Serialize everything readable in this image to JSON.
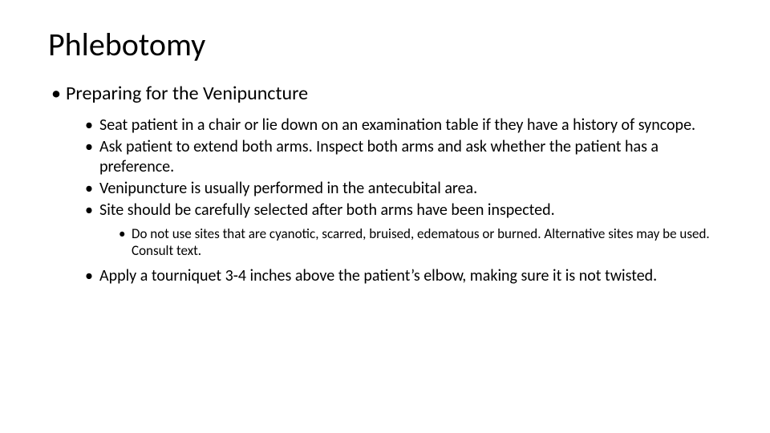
{
  "colors": {
    "background": "#ffffff",
    "text": "#000000"
  },
  "typography": {
    "family": "Calibri",
    "title_size_pt": 40,
    "lvl1_size_pt": 24,
    "lvl2_size_pt": 20,
    "lvl3_size_pt": 17
  },
  "title": "Phlebotomy",
  "bullets": {
    "lvl1": "Preparing for the Venipuncture",
    "lvl2": {
      "item1": "Seat patient in a chair or lie down on an examination table if they have a history of syncope.",
      "item2": "Ask patient to extend both arms.  Inspect both arms and ask whether the patient has a preference.",
      "item3": "Venipuncture is usually performed in the antecubital area.",
      "item4": "Site should be carefully selected after both arms have been inspected.",
      "item5": "Apply a tourniquet 3-4 inches above the patient’s elbow, making sure it is not twisted."
    },
    "lvl3": {
      "item1": "Do not use sites that are cyanotic, scarred, bruised, edematous or burned.  Alternative sites may be used.  Consult text."
    }
  }
}
